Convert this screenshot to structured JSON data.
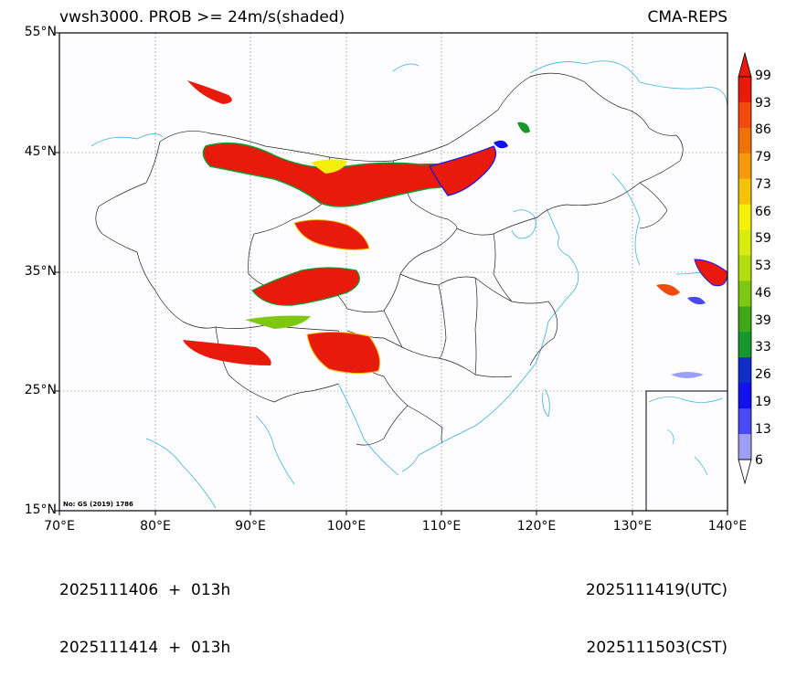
{
  "title": {
    "left": "vwsh3000. PROB >= 24m/s(shaded)",
    "right": "CMA-REPS"
  },
  "axes": {
    "lat_labels": [
      "55°N",
      "45°N",
      "35°N",
      "25°N",
      "15°N"
    ],
    "lon_labels": [
      "70°E",
      "80°E",
      "90°E",
      "100°E",
      "110°E",
      "120°E",
      "130°E",
      "140°E"
    ]
  },
  "colorbar": {
    "levels": [
      "99",
      "93",
      "86",
      "79",
      "73",
      "66",
      "59",
      "53",
      "46",
      "39",
      "33",
      "26",
      "19",
      "13",
      "6"
    ],
    "colors": [
      "#e81a0c",
      "#f04a0c",
      "#f0700a",
      "#f59a0a",
      "#f5c40a",
      "#f5f00a",
      "#d8ec0e",
      "#b4dc0e",
      "#7ec812",
      "#3ea81a",
      "#16982e",
      "#0f2ec8",
      "#1212f0",
      "#4a4af5",
      "#9e9ef5"
    ]
  },
  "map_note": "No: GS (2019) 1786",
  "footer": {
    "left_line1": "2025111406  +  013h",
    "left_line2": "2025111414  +  013h",
    "right_line1": "2025111419(UTC)",
    "right_line2": "2025111503(CST)"
  }
}
